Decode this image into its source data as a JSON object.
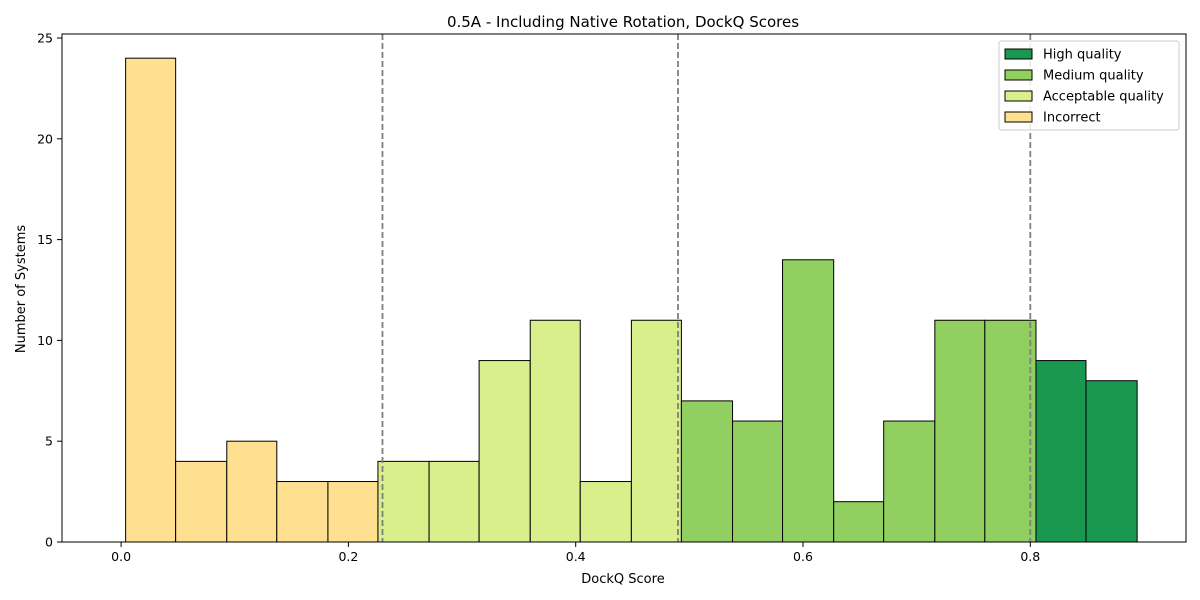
{
  "chart_data": {
    "type": "bar",
    "title": "0.5A - Including Native Rotation, DockQ Scores",
    "xlabel": "DockQ Score",
    "ylabel": "Number of Systems",
    "xlim": [
      -0.052,
      0.937
    ],
    "ylim": [
      0,
      25.2
    ],
    "xticks": [
      0.0,
      0.2,
      0.4,
      0.6,
      0.8
    ],
    "xtick_labels": [
      "0.0",
      "0.2",
      "0.4",
      "0.6",
      "0.8"
    ],
    "yticks": [
      0,
      5,
      10,
      15,
      20,
      25
    ],
    "ytick_labels": [
      "0",
      "5",
      "10",
      "15",
      "20",
      "25"
    ],
    "grid": false,
    "legend_position": "top-right",
    "thresholds": [
      0.23,
      0.49,
      0.8
    ],
    "series": [
      {
        "name": "Incorrect",
        "color": "#fee090",
        "bins": [
          {
            "x0": 0.004,
            "x1": 0.048,
            "value": 24
          },
          {
            "x0": 0.048,
            "x1": 0.093,
            "value": 4
          },
          {
            "x0": 0.093,
            "x1": 0.137,
            "value": 5
          },
          {
            "x0": 0.137,
            "x1": 0.182,
            "value": 3
          },
          {
            "x0": 0.182,
            "x1": 0.226,
            "value": 3
          }
        ]
      },
      {
        "name": "Acceptable quality",
        "color": "#d9ef8b",
        "bins": [
          {
            "x0": 0.226,
            "x1": 0.271,
            "value": 4
          },
          {
            "x0": 0.271,
            "x1": 0.315,
            "value": 4
          },
          {
            "x0": 0.315,
            "x1": 0.36,
            "value": 9
          },
          {
            "x0": 0.36,
            "x1": 0.404,
            "value": 11
          },
          {
            "x0": 0.404,
            "x1": 0.449,
            "value": 3
          },
          {
            "x0": 0.449,
            "x1": 0.493,
            "value": 11
          }
        ]
      },
      {
        "name": "Medium quality",
        "color": "#91cf60",
        "bins": [
          {
            "x0": 0.493,
            "x1": 0.538,
            "value": 7
          },
          {
            "x0": 0.538,
            "x1": 0.582,
            "value": 6
          },
          {
            "x0": 0.582,
            "x1": 0.627,
            "value": 14
          },
          {
            "x0": 0.627,
            "x1": 0.671,
            "value": 2
          },
          {
            "x0": 0.671,
            "x1": 0.716,
            "value": 6
          },
          {
            "x0": 0.716,
            "x1": 0.76,
            "value": 11
          },
          {
            "x0": 0.76,
            "x1": 0.805,
            "value": 11
          }
        ]
      },
      {
        "name": "High quality",
        "color": "#1a9850",
        "bins": [
          {
            "x0": 0.805,
            "x1": 0.849,
            "value": 9
          },
          {
            "x0": 0.849,
            "x1": 0.894,
            "value": 8
          }
        ]
      }
    ],
    "legend": [
      {
        "name": "High quality",
        "color": "#1a9850"
      },
      {
        "name": "Medium quality",
        "color": "#91cf60"
      },
      {
        "name": "Acceptable quality",
        "color": "#d9ef8b"
      },
      {
        "name": "Incorrect",
        "color": "#fee090"
      }
    ]
  }
}
